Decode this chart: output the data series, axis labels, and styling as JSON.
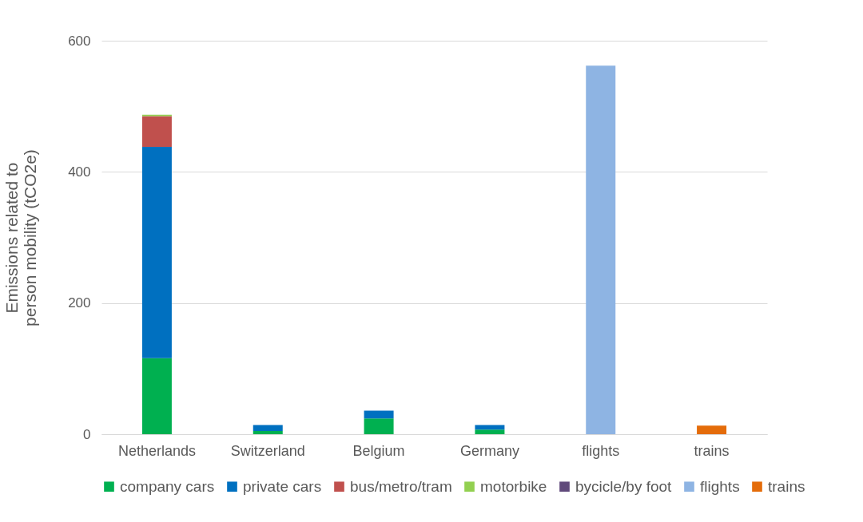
{
  "chart_data": {
    "type": "bar",
    "stacked": true,
    "ylabel": "Emissions related to person mobility (tCO2e)",
    "categories": [
      "Netherlands",
      "Switzerland",
      "Belgium",
      "Germany",
      "flights",
      "trains"
    ],
    "series": [
      {
        "name": "company cars",
        "color": "#00b050",
        "values": [
          116,
          5,
          24,
          7,
          null,
          null
        ]
      },
      {
        "name": "private cars",
        "color": "#0070c0",
        "values": [
          322,
          9,
          12,
          7,
          null,
          null
        ]
      },
      {
        "name": "bus/metro/tram",
        "color": "#c0504d",
        "values": [
          47,
          null,
          null,
          null,
          null,
          null
        ]
      },
      {
        "name": "motorbike",
        "color": "#92d050",
        "values": [
          2,
          null,
          null,
          null,
          null,
          null
        ]
      },
      {
        "name": "bycicle/by foot",
        "color": "#604a7b",
        "values": [
          null,
          null,
          null,
          null,
          null,
          null
        ]
      },
      {
        "name": "flights",
        "color": "#8eb4e3",
        "values": [
          null,
          null,
          null,
          null,
          562,
          null
        ]
      },
      {
        "name": "trains",
        "color": "#e46c0a",
        "values": [
          null,
          null,
          null,
          null,
          null,
          13
        ]
      }
    ],
    "ylim": [
      0,
      600
    ],
    "yticks": [
      0,
      200,
      400,
      600
    ],
    "grid": "y",
    "legend": "bottom"
  }
}
